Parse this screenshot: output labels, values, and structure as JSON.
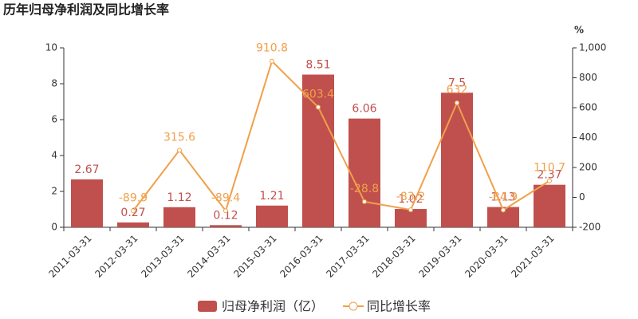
{
  "chart_data": {
    "type": "combo",
    "title": "历年归母净利润及同比增长率",
    "y2_unit": "%",
    "categories": [
      "2011-03-31",
      "2012-03-31",
      "2013-03-31",
      "2014-03-31",
      "2015-03-31",
      "2016-03-31",
      "2017-03-31",
      "2018-03-31",
      "2019-03-31",
      "2020-03-31",
      "2021-03-31"
    ],
    "series": [
      {
        "name": "归母净利润（亿）",
        "type": "bar",
        "color": "#c0504d",
        "values": [
          2.67,
          0.27,
          1.12,
          0.12,
          1.21,
          8.51,
          6.06,
          1.02,
          7.5,
          1.13,
          2.37
        ]
      },
      {
        "name": "同比增长率",
        "type": "line",
        "axis": "y2",
        "color": "#f0a04a",
        "values": [
          null,
          -89.9,
          315.6,
          -89.4,
          910.8,
          603.4,
          -28.8,
          -83.2,
          632,
          -84.9,
          110.7
        ]
      }
    ],
    "ylim": [
      0,
      10
    ],
    "yticks": [
      0,
      2,
      4,
      6,
      8,
      10
    ],
    "y2lim": [
      -200,
      1000
    ],
    "y2ticks": [
      -200,
      0,
      200,
      400,
      600,
      800,
      {
        "value": 1000,
        "label": "1,000"
      }
    ],
    "legend": "bottom"
  }
}
